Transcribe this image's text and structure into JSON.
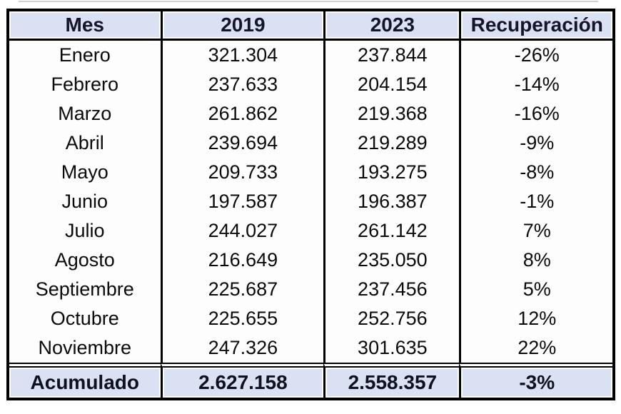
{
  "table": {
    "columns": [
      "Mes",
      "2019",
      "2023",
      "Recuperación"
    ],
    "rows": [
      [
        "Enero",
        "321.304",
        "237.844",
        "-26%"
      ],
      [
        "Febrero",
        "237.633",
        "204.154",
        "-14%"
      ],
      [
        "Marzo",
        "261.862",
        "219.368",
        "-16%"
      ],
      [
        "Abril",
        "239.694",
        "219.289",
        "-9%"
      ],
      [
        "Mayo",
        "209.733",
        "193.275",
        "-8%"
      ],
      [
        "Junio",
        "197.587",
        "196.387",
        "-1%"
      ],
      [
        "Julio",
        "244.027",
        "261.142",
        "7%"
      ],
      [
        "Agosto",
        "216.649",
        "235.050",
        "8%"
      ],
      [
        "Septiembre",
        "225.687",
        "237.456",
        "5%"
      ],
      [
        "Octubre",
        "225.655",
        "252.756",
        "12%"
      ],
      [
        "Noviembre",
        "247.326",
        "301.635",
        "22%"
      ]
    ],
    "footer": [
      "Acumulado",
      "2.627.158",
      "2.558.357",
      "-3%"
    ]
  },
  "colors": {
    "header_bg": "#D9E1F2",
    "border": "#000000",
    "body_bg": "#FDFDFD",
    "text": "#0A0A0A"
  },
  "chart_data": {
    "type": "table",
    "title": "",
    "columns": [
      "Mes",
      "2019",
      "2023",
      "Recuperación"
    ],
    "categories": [
      "Enero",
      "Febrero",
      "Marzo",
      "Abril",
      "Mayo",
      "Junio",
      "Julio",
      "Agosto",
      "Septiembre",
      "Octubre",
      "Noviembre"
    ],
    "series": [
      {
        "name": "2019",
        "values": [
          321304,
          237633,
          261862,
          239694,
          209733,
          197587,
          244027,
          216649,
          225687,
          225655,
          247326
        ]
      },
      {
        "name": "2023",
        "values": [
          237844,
          204154,
          219368,
          219289,
          193275,
          196387,
          261142,
          235050,
          237456,
          252756,
          301635
        ]
      },
      {
        "name": "Recuperación %",
        "values": [
          -26,
          -14,
          -16,
          -9,
          -8,
          -1,
          7,
          8,
          5,
          12,
          22
        ]
      }
    ],
    "totals": {
      "label": "Acumulado",
      "2019": 2627158,
      "2023": 2558357,
      "recuperacion_pct": -3
    }
  }
}
